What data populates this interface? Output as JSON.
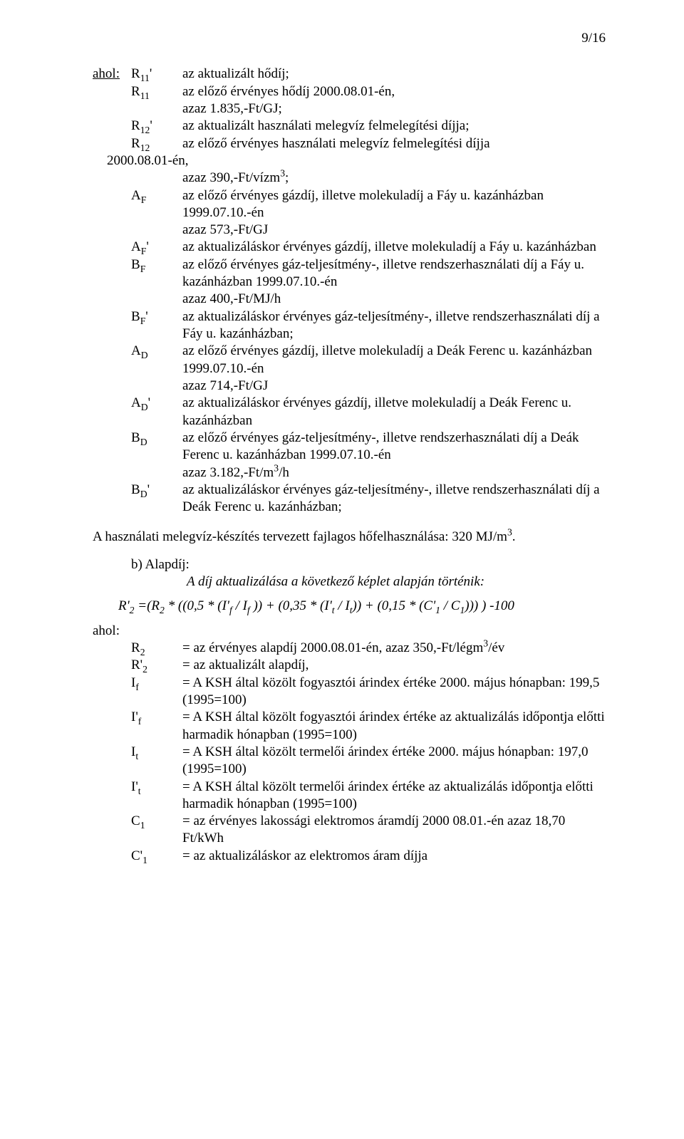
{
  "page_number": "9/16",
  "lead_label": "ahol:",
  "defs": [
    {
      "sym": "R<sub>11</sub>'",
      "desc": "az aktualizált hődíj;"
    },
    {
      "sym": "R<sub>11</sub>",
      "desc": "az előző érvényes hődíj 2000.08.01-én,<br>azaz 1.835,-Ft/GJ;"
    },
    {
      "sym": "R<sub>12</sub>'",
      "desc": "az aktualizált használati melegvíz felmelegítési díjja;"
    },
    {
      "sym": "R<sub>12</sub>",
      "desc": "az előző érvényes használati melegvíz felmelegítési díjja"
    },
    {
      "sym": "",
      "desc_pull": "2000.08.01-én,<br>azaz 390,-Ft/vízm<sup>3</sup>;"
    },
    {
      "sym": "A<sub>F</sub>",
      "desc": "az előző érvényes gázdíj, illetve molekuladíj a Fáy u. kazánházban 1999.07.10.-én<br>azaz 573,-Ft/GJ"
    },
    {
      "sym": "A<sub>F</sub>'",
      "desc": "az aktualizáláskor érvényes gázdíj, illetve molekuladíj a Fáy u. kazánházban"
    },
    {
      "sym": "B<sub>F</sub>",
      "desc": "az előző érvényes gáz-teljesítmény-, illetve rendszerhasználati díj a Fáy u. kazánházban 1999.07.10.-én<br>azaz 400,-Ft/MJ/h"
    },
    {
      "sym": "B<sub>F</sub>'",
      "desc": "az aktualizáláskor érvényes gáz-teljesítmény-, illetve rendszerhasználati díj a Fáy u. kazánházban;"
    },
    {
      "sym": "A<sub>D</sub>",
      "desc": "az előző érvényes gázdíj, illetve molekuladíj a Deák Ferenc u. kazánházban 1999.07.10.-én<br>azaz 714,-Ft/GJ"
    },
    {
      "sym": "A<sub>D</sub>'",
      "desc": "az aktualizáláskor érvényes gázdíj, illetve molekuladíj a Deák Ferenc u. kazánházban"
    },
    {
      "sym": "B<sub>D</sub>",
      "desc": "az előző érvényes gáz-teljesítmény-, illetve rendszerhasználati díj a Deák Ferenc u. kazánházban 1999.07.10.-én<br>azaz 3.182,-Ft/m<sup>3</sup>/h"
    },
    {
      "sym": "B<sub>D</sub>'",
      "desc": "az aktualizáláskor érvényes gáz-teljesítmény-, illetve rendszerhasználati díj a Deák Ferenc u. kazánházban;"
    }
  ],
  "mid_paragraph": "A használati melegvíz-készítés tervezett fajlagos hőfelhasználása: 320 MJ/m<sup>3</sup>.",
  "section_b": {
    "label": "b)  Alapdíj:",
    "italic_line": "A díj aktualizálása a következő képlet alapján történik:"
  },
  "formula_html": "R'<span class='sub'>2</span> =(R<span class='sub'>2</span> <span>*</span> ((0,5 <span>*</span> (I'<span class='sub'>f</span>&nbsp;/&nbsp;I<span class='sub'>f</span>&nbsp;)) + (0,35 <span>*</span> (I'<span class='sub'>t</span>&nbsp;/&nbsp;I<span class='sub'>t</span>)) + (0,15 <span>*</span> (C'<span class='sub'>1</span>&nbsp;/&nbsp;C<span class='sub'>1</span>))) ) -100",
  "ahol2": "ahol:",
  "defs2": [
    {
      "sym": "R<sub>2</sub>",
      "desc": "= az érvényes alapdíj 2000.08.01-én, azaz 350,-Ft/légm<sup>3</sup>/év"
    },
    {
      "sym": "R'<sub>2</sub>",
      "desc": "= az aktualizált alapdíj,"
    },
    {
      "sym": "I<sub>f</sub>",
      "desc": "= A KSH által közölt fogyasztói árindex értéke 2000. május hónapban: 199,5 (1995=100)"
    },
    {
      "sym": "I'<sub>f</sub>",
      "desc": "= A KSH által közölt fogyasztói árindex értéke az aktualizálás időpontja előtti harmadik hónapban (1995=100)"
    },
    {
      "sym": "I<sub>t</sub>",
      "desc": "= A KSH által közölt termelői árindex értéke 2000. május hónapban: 197,0 (1995=100)"
    },
    {
      "sym": "I'<sub>t</sub>",
      "desc": "= A KSH által közölt termelői árindex értéke az aktualizálás időpontja előtti harmadik hónapban (1995=100)"
    },
    {
      "sym": "C<sub>1</sub>",
      "desc": "= az érvényes lakossági elektromos áramdíj 2000 08.01.-én azaz 18,70 Ft/kWh"
    },
    {
      "sym": "C'<sub>1</sub>",
      "desc": "= az aktualizáláskor az elektromos áram díjja"
    }
  ]
}
